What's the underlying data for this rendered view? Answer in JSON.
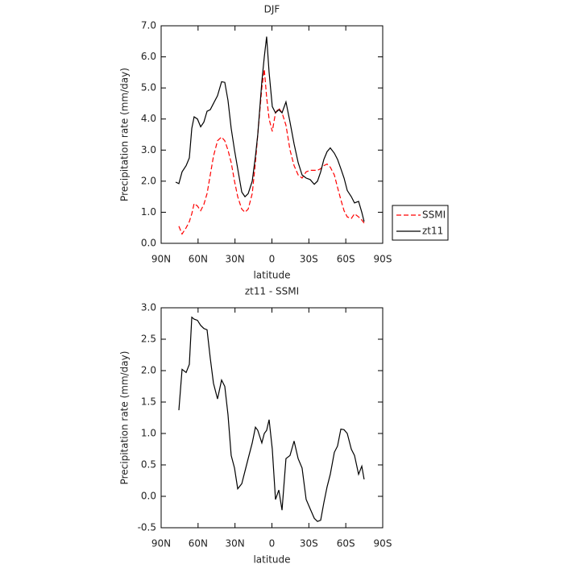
{
  "chart_data": [
    {
      "type": "line",
      "title": "DJF",
      "xlabel": "latitude",
      "ylabel": "Precipitation rate (mm/day)",
      "x": [
        78.2,
        75.6,
        73.0,
        69.7,
        67.1,
        65.1,
        63.2,
        60.5,
        57.9,
        55.3,
        52.7,
        50.1,
        47.5,
        44.2,
        40.9,
        38.3,
        35.7,
        33.1,
        30.4,
        27.8,
        24.5,
        21.9,
        19.3,
        16.0,
        13.4,
        11.5,
        8.2,
        6.2,
        4.3,
        2.3,
        -0.3,
        -2.9,
        -5.6,
        -8.2,
        -11.4,
        -14.7,
        -18.0,
        -21.3,
        -24.5,
        -27.8,
        -31.1,
        -34.4,
        -37.0,
        -39.6,
        -42.2,
        -44.8,
        -47.4,
        -50.7,
        -53.3,
        -56.0,
        -58.6,
        -61.2,
        -64.5,
        -67.1,
        -70.4,
        -73.0,
        -74.9
      ],
      "series": [
        {
          "name": "SSMI",
          "color": "#ff0000",
          "linestyle": "dashed",
          "values": [
            null,
            0.55,
            0.3,
            0.5,
            0.7,
            0.95,
            1.28,
            1.2,
            1.05,
            1.25,
            1.6,
            2.2,
            2.8,
            3.3,
            3.42,
            3.3,
            3.0,
            2.6,
            2.0,
            1.5,
            1.1,
            1.0,
            1.1,
            1.6,
            2.6,
            3.5,
            5.0,
            5.6,
            4.7,
            4.0,
            3.6,
            4.2,
            4.35,
            4.2,
            3.8,
            3.0,
            2.5,
            2.2,
            2.1,
            2.3,
            2.35,
            2.35,
            2.35,
            2.4,
            2.5,
            2.55,
            2.45,
            2.2,
            1.8,
            1.4,
            1.05,
            0.85,
            0.8,
            0.95,
            0.85,
            0.75,
            0.65
          ]
        },
        {
          "name": "zt11",
          "color": "#000000",
          "linestyle": "solid",
          "values": [
            1.97,
            1.92,
            2.3,
            2.5,
            2.75,
            3.7,
            4.07,
            4.0,
            3.75,
            3.9,
            4.25,
            4.3,
            4.5,
            4.75,
            5.2,
            5.18,
            4.6,
            3.7,
            3.0,
            2.4,
            1.65,
            1.5,
            1.6,
            2.0,
            2.8,
            3.5,
            5.2,
            6.0,
            6.65,
            5.5,
            4.4,
            4.2,
            4.3,
            4.2,
            4.55,
            3.9,
            3.2,
            2.6,
            2.2,
            2.1,
            2.05,
            1.9,
            2.0,
            2.3,
            2.7,
            2.95,
            3.07,
            2.9,
            2.7,
            2.4,
            2.1,
            1.7,
            1.5,
            1.3,
            1.35,
            1.0,
            0.7
          ]
        }
      ],
      "xlim": [
        90,
        -90
      ],
      "xticks": [
        {
          "value": 90,
          "label": "90N"
        },
        {
          "value": 60,
          "label": "60N"
        },
        {
          "value": 30,
          "label": "30N"
        },
        0,
        {
          "value": -30,
          "label": "30S"
        },
        {
          "value": -60,
          "label": "60S"
        },
        {
          "value": -90,
          "label": "90S"
        }
      ],
      "ylim": [
        0,
        7
      ],
      "yticks": [
        {
          "value": 0,
          "label": "0.0"
        },
        {
          "value": 1,
          "label": "1.0"
        },
        {
          "value": 2,
          "label": "2.0"
        },
        {
          "value": 3,
          "label": "3.0"
        },
        {
          "value": 4,
          "label": "4.0"
        },
        {
          "value": 5,
          "label": "5.0"
        },
        {
          "value": 6,
          "label": "6.0"
        },
        {
          "value": 7,
          "label": "7.0"
        }
      ],
      "legend": "right"
    },
    {
      "type": "line",
      "title": "zt11 - SSMI",
      "xlabel": "latitude",
      "ylabel": "Precipitation rate (mm/day)",
      "x": [
        78.2,
        75.6,
        73.0,
        69.7,
        67.1,
        65.1,
        63.2,
        60.5,
        57.9,
        55.3,
        52.7,
        50.1,
        47.5,
        44.2,
        40.9,
        38.3,
        35.7,
        33.1,
        30.4,
        27.8,
        24.5,
        21.9,
        19.3,
        16.0,
        13.4,
        11.5,
        8.2,
        6.2,
        4.3,
        2.3,
        -0.3,
        -2.9,
        -5.6,
        -8.2,
        -11.4,
        -14.7,
        -18.0,
        -21.3,
        -24.5,
        -27.8,
        -31.1,
        -34.4,
        -37.0,
        -39.6,
        -42.2,
        -44.8,
        -47.4,
        -50.7,
        -53.3,
        -56.0,
        -58.6,
        -61.2,
        -64.5,
        -67.1,
        -70.4,
        -73.0,
        -74.9
      ],
      "values": [
        null,
        1.37,
        2.02,
        1.97,
        2.1,
        2.85,
        2.82,
        2.8,
        2.72,
        2.67,
        2.65,
        2.2,
        1.8,
        1.55,
        1.85,
        1.75,
        1.3,
        0.65,
        0.45,
        0.12,
        0.2,
        0.4,
        0.6,
        0.85,
        1.1,
        1.05,
        0.85,
        1.0,
        1.05,
        1.22,
        0.75,
        -0.05,
        0.1,
        -0.22,
        0.6,
        0.65,
        0.88,
        0.6,
        0.45,
        -0.05,
        -0.2,
        -0.35,
        -0.4,
        -0.38,
        -0.1,
        0.15,
        0.35,
        0.7,
        0.8,
        1.07,
        1.06,
        1.0,
        0.75,
        0.65,
        0.35,
        0.48,
        0.27
      ],
      "color": "#000000",
      "xlim": [
        90,
        -90
      ],
      "xticks": [
        {
          "value": 90,
          "label": "90N"
        },
        {
          "value": 60,
          "label": "60N"
        },
        {
          "value": 30,
          "label": "30N"
        },
        0,
        {
          "value": -30,
          "label": "30S"
        },
        {
          "value": -60,
          "label": "60S"
        },
        {
          "value": -90,
          "label": "90S"
        }
      ],
      "ylim": [
        -0.5,
        3
      ],
      "yticks": [
        -0.5,
        {
          "value": 0,
          "label": "0.0"
        },
        0.5,
        {
          "value": 1,
          "label": "1.0"
        },
        1.5,
        {
          "value": 2,
          "label": "2.0"
        },
        2.5,
        {
          "value": 3,
          "label": "3.0"
        }
      ]
    }
  ]
}
